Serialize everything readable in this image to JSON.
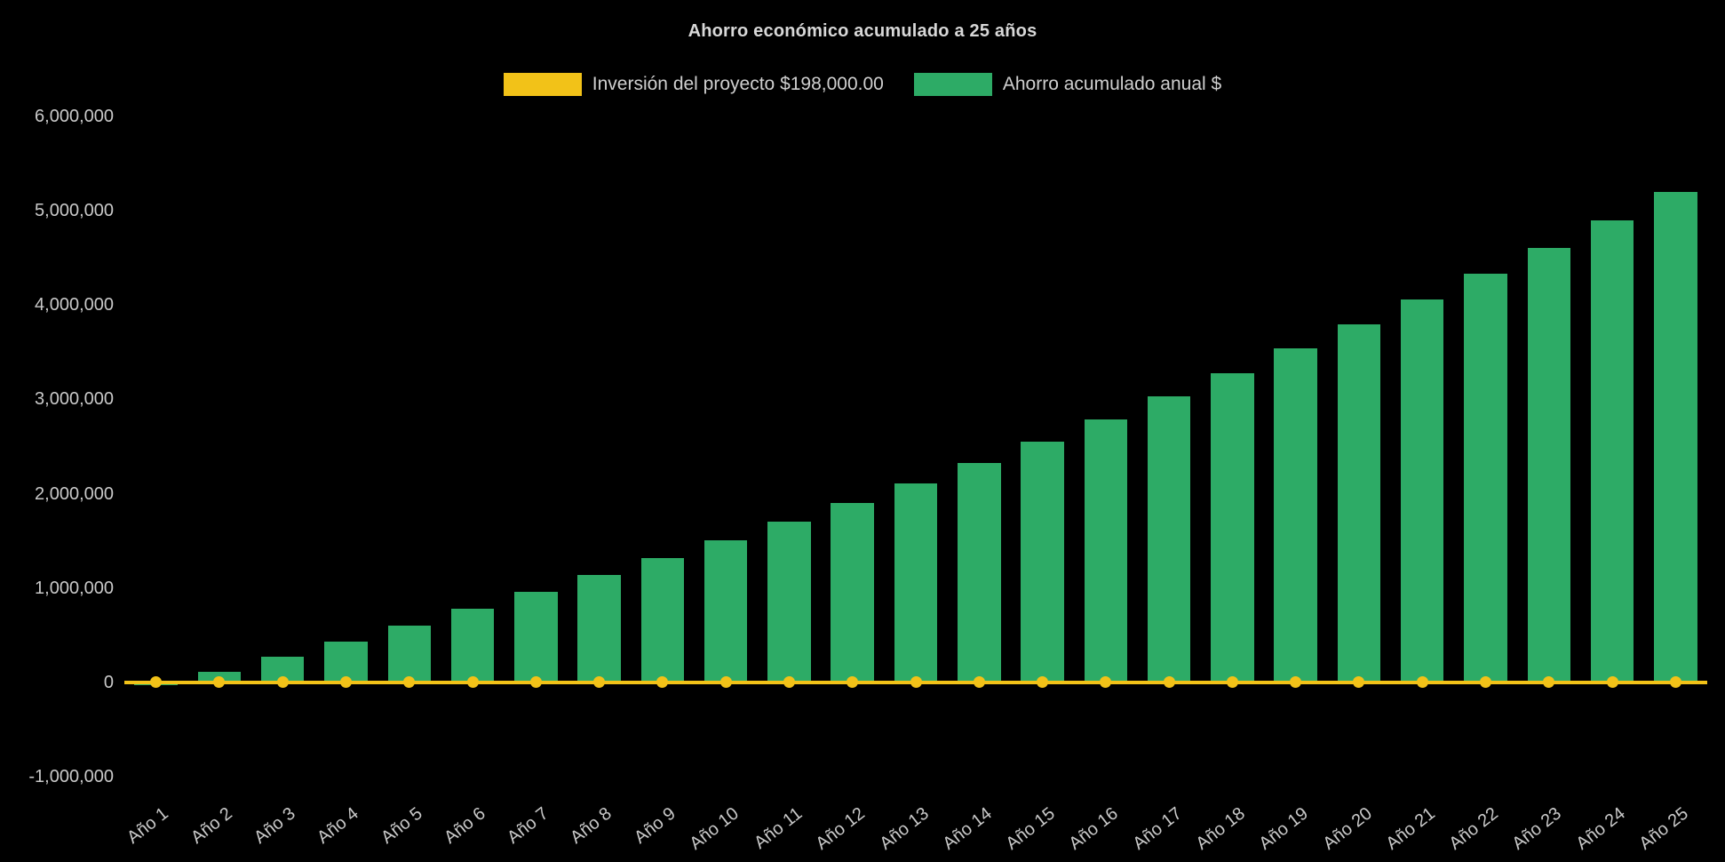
{
  "chart_data": {
    "type": "bar",
    "title": "Ahorro económico acumulado a 25 años",
    "categories": [
      "Año 1",
      "Año 2",
      "Año 3",
      "Año 4",
      "Año 5",
      "Año 6",
      "Año 7",
      "Año 8",
      "Año 9",
      "Año 10",
      "Año 11",
      "Año 12",
      "Año 13",
      "Año 14",
      "Año 15",
      "Año 16",
      "Año 17",
      "Año 18",
      "Año 19",
      "Año 20",
      "Año 21",
      "Año 22",
      "Año 23",
      "Año 24",
      "Año 25"
    ],
    "series": [
      {
        "name": "Inversión del proyecto $198,000.00",
        "type": "line",
        "color": "#f2c218",
        "value": 0
      },
      {
        "name": "Ahorro acumulado anual $",
        "type": "bar",
        "color": "#2dab66",
        "values": [
          -30000,
          110000,
          270000,
          430000,
          600000,
          780000,
          960000,
          1140000,
          1320000,
          1510000,
          1700000,
          1900000,
          2110000,
          2330000,
          2550000,
          2790000,
          3030000,
          3280000,
          3540000,
          3800000,
          4060000,
          4330000,
          4610000,
          4900000,
          5200000
        ]
      }
    ],
    "ylim": [
      -1000000,
      6000000
    ],
    "ytick_interval": 1000000,
    "ytick_labels": [
      "-1,000,000",
      "0",
      "1,000,000",
      "2,000,000",
      "3,000,000",
      "4,000,000",
      "5,000,000",
      "6,000,000"
    ],
    "grid": false,
    "legend_position": "top",
    "colors": {
      "background": "#000000",
      "text": "#c9c9c9"
    }
  }
}
